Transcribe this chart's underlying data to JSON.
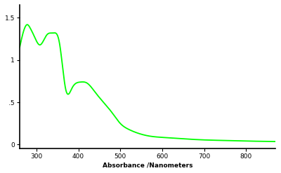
{
  "title": "",
  "xlabel": "Absorbance /Nanometers",
  "ylabel": "",
  "xlim": [
    260,
    870
  ],
  "ylim": [
    -0.05,
    1.65
  ],
  "yticks": [
    0,
    0.5,
    1.0,
    1.5
  ],
  "ytick_labels": [
    "0",
    ".5",
    "1",
    "1.5"
  ],
  "xticks": [
    300,
    400,
    500,
    600,
    700,
    800
  ],
  "line_color": "#00ff00",
  "line_width": 1.3,
  "background_color": "#ffffff",
  "spine_color": "#000000",
  "tick_color": "#000000",
  "xlabel_fontsize": 6.5,
  "tick_fontsize": 6.5,
  "x_ctrl": [
    260,
    268,
    278,
    285,
    295,
    308,
    325,
    340,
    355,
    370,
    385,
    405,
    420,
    440,
    460,
    480,
    500,
    520,
    545,
    570,
    600,
    630,
    660,
    700,
    750,
    800,
    840,
    870
  ],
  "y_ctrl": [
    1.15,
    1.32,
    1.42,
    1.38,
    1.28,
    1.18,
    1.3,
    1.32,
    1.2,
    0.65,
    0.67,
    0.74,
    0.73,
    0.62,
    0.5,
    0.38,
    0.25,
    0.18,
    0.13,
    0.1,
    0.085,
    0.075,
    0.065,
    0.055,
    0.048,
    0.042,
    0.038,
    0.036
  ]
}
